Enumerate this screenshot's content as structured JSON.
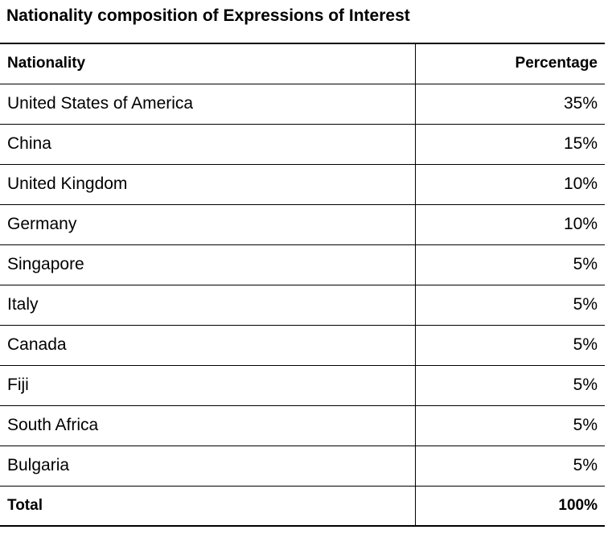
{
  "title": "Nationality composition of Expressions of Interest",
  "columns": {
    "nationality": "Nationality",
    "percentage": "Percentage"
  },
  "rows": [
    {
      "nationality": "United States of America",
      "percentage": "35%"
    },
    {
      "nationality": "China",
      "percentage": "15%"
    },
    {
      "nationality": "United Kingdom",
      "percentage": "10%"
    },
    {
      "nationality": "Germany",
      "percentage": "10%"
    },
    {
      "nationality": "Singapore",
      "percentage": "5%"
    },
    {
      "nationality": "Italy",
      "percentage": "5%"
    },
    {
      "nationality": "Canada",
      "percentage": "5%"
    },
    {
      "nationality": "Fiji",
      "percentage": "5%"
    },
    {
      "nationality": "South Africa",
      "percentage": "5%"
    },
    {
      "nationality": "Bulgaria",
      "percentage": "5%"
    }
  ],
  "total": {
    "label": "Total",
    "percentage": "100%"
  }
}
